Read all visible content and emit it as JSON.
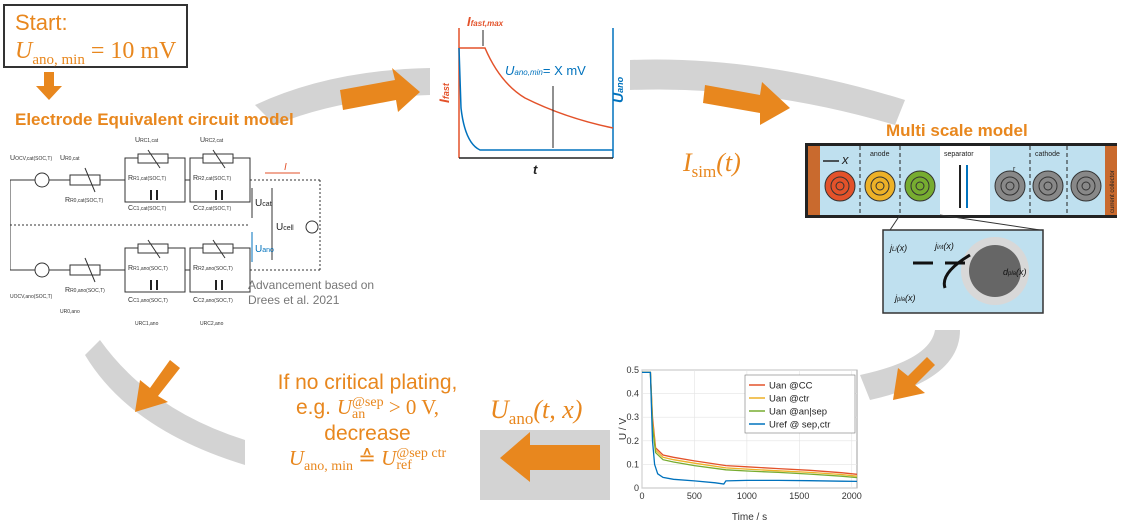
{
  "start": {
    "label": "Start:",
    "eq_var": "U",
    "eq_sub": "ano, min",
    "eq_rest": " = 10 mV"
  },
  "ecm": {
    "title": "Electrode Equivalent circuit model",
    "labels": {
      "u_ocv_cat": "U",
      "u_r0_cat": "U",
      "u_rc1_cat": "U",
      "u_rc2_cat": "U",
      "current": "I",
      "u_cat": "U",
      "u_cell": "U",
      "u_ano": "U"
    },
    "sub_labels": {
      "ocv_cat": "OCV,cat(SOC,T)",
      "r0_cat": "R0,cat",
      "rc1_cat": "RC1,cat",
      "rc2_cat": "RC2,cat",
      "r0_cat_res": "R0,cat(SOC,T)",
      "r1_cat": "R1,cat(SOC,T)",
      "c1_cat": "C1,cat(SOC,T)",
      "r2_cat": "R2,cat(SOC,T)",
      "c2_cat": "C2,cat(SOC,T)",
      "ocv_ano": "UOCV,ano(SOC,T)",
      "r0_ano_res": "R0,ano(SOC,T)",
      "r1_ano": "R1,ano(SOC,T)",
      "c1_ano": "C1,ano(SOC,T)",
      "r2_ano": "R2,ano(SOC,T)",
      "c2_ano": "C2,ano(SOC,T)",
      "u_r0_ano": "UR0,ano",
      "u_rc1_ano": "URC1,ano",
      "u_rc2_ano": "URC2,ano"
    },
    "note": "Advancement based on Drees et al. 2021"
  },
  "current_plot": {
    "title_var": "I",
    "title_sub": "fast,max",
    "y_left": "I",
    "y_left_sub": "fast",
    "y_right": "U",
    "y_right_sub": "ano",
    "x_label": "t",
    "annot_var": "U",
    "annot_sub": "ano,min",
    "annot_rest": "= X mV"
  },
  "isim": {
    "var": "I",
    "sub": "sim",
    "arg": "(t)"
  },
  "msm": {
    "title": "Multi scale model",
    "x_label": "x",
    "anode": "anode",
    "separator": "separator",
    "cathode": "cathode",
    "collector": "current collector",
    "r": "r",
    "j_li": "j",
    "j_li_sub": "Li",
    "j_int": "j",
    "j_int_sub": "int",
    "j_pla": "j",
    "j_pla_sub": "pla",
    "d_pla": "d",
    "d_pla_sub": "pla",
    "arg": "(x)"
  },
  "uano": {
    "var": "U",
    "sub": "ano",
    "arg": "(t, x)"
  },
  "condition": {
    "line1": "If no critical plating,",
    "line2a": "e.g. ",
    "line2_var": "U",
    "line2_sub": "an",
    "line2_sup": "@sep",
    "line2b": " > 0 V,",
    "line3": "decrease",
    "line4_var": "U",
    "line4_sub": "ano, min",
    "line4_op": " ≙ ",
    "line4_var2": "U",
    "line4_sub2": "ref",
    "line4_sup2": "@sep ctr"
  },
  "chart_data": {
    "type": "line",
    "xlabel": "Time / s",
    "ylabel": "U / V",
    "xlim": [
      0,
      2050
    ],
    "ylim": [
      0,
      0.5
    ],
    "xticks": [
      0,
      500,
      1000,
      1500,
      2000
    ],
    "yticks": [
      0,
      0.1,
      0.2,
      0.3,
      0.4,
      0.5
    ],
    "grid": true,
    "legend": "top-right",
    "series": [
      {
        "name": "Uan @CC",
        "color": "#e3522a",
        "x": [
          0,
          80,
          100,
          130,
          200,
          300,
          500,
          800,
          1000,
          1300,
          1600,
          1900,
          2050
        ],
        "y": [
          0.49,
          0.49,
          0.3,
          0.17,
          0.14,
          0.13,
          0.115,
          0.095,
          0.09,
          0.082,
          0.075,
          0.065,
          0.058
        ]
      },
      {
        "name": "Uan @ctr",
        "color": "#edb127",
        "x": [
          0,
          80,
          100,
          130,
          200,
          300,
          500,
          800,
          1000,
          1300,
          1600,
          1900,
          2050
        ],
        "y": [
          0.49,
          0.49,
          0.28,
          0.16,
          0.13,
          0.12,
          0.105,
          0.085,
          0.08,
          0.073,
          0.066,
          0.057,
          0.05
        ]
      },
      {
        "name": "Uan @an|sep",
        "color": "#77ac30",
        "x": [
          0,
          80,
          100,
          130,
          200,
          300,
          500,
          800,
          1000,
          1300,
          1600,
          1900,
          2050
        ],
        "y": [
          0.49,
          0.49,
          0.26,
          0.15,
          0.12,
          0.11,
          0.095,
          0.077,
          0.072,
          0.066,
          0.059,
          0.05,
          0.044
        ]
      },
      {
        "name": "Uref  @ sep,ctr",
        "color": "#0072bd",
        "x": [
          0,
          80,
          100,
          120,
          150,
          200,
          300,
          500,
          700,
          780,
          800,
          1000,
          1300,
          1600,
          1900,
          2050
        ],
        "y": [
          0.49,
          0.49,
          0.2,
          0.1,
          0.06,
          0.045,
          0.037,
          0.03,
          0.022,
          0.017,
          0.03,
          0.032,
          0.032,
          0.031,
          0.029,
          0.028
        ]
      }
    ]
  }
}
